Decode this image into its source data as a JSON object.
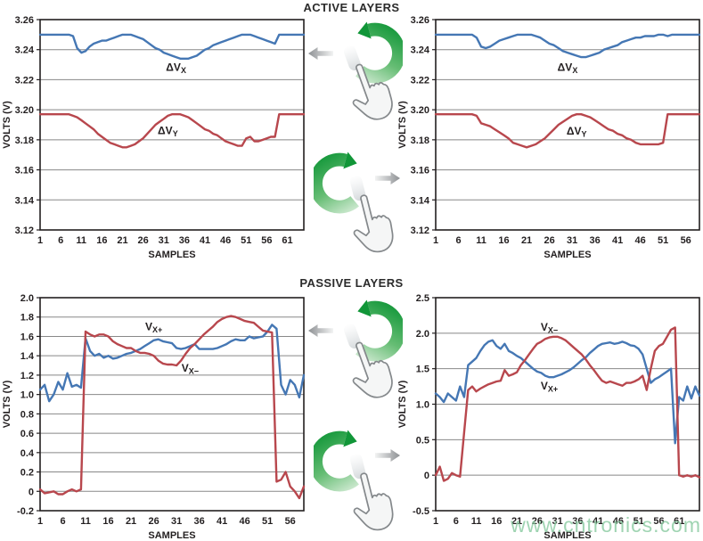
{
  "sections": [
    {
      "id": "active",
      "title": "ACTIVE LAYERS"
    },
    {
      "id": "passive",
      "title": "PASSIVE LAYERS"
    }
  ],
  "watermark": {
    "text": "www.cntronics.com",
    "color": "#8eccA4"
  },
  "colors": {
    "blue": "#4577b4",
    "red": "#b8474d",
    "grid": "#888888",
    "axis": "#231f20",
    "text": "#231f20",
    "green_arrow_dark": "#119638",
    "green_arrow_light": "#d4ecd6",
    "gray_arrow": "#8e9194",
    "hand_stroke": "#84888b",
    "hand_fill": "#f5f6f6"
  },
  "icons": [
    {
      "name": "rotate-counterclockwise-gesture-icon",
      "meaning": "rotate touch gesture counterclockwise"
    },
    {
      "name": "rotate-clockwise-gesture-icon",
      "meaning": "rotate touch gesture clockwise"
    },
    {
      "name": "left-arrow-icon",
      "meaning": "result applies to left chart"
    },
    {
      "name": "right-arrow-icon",
      "meaning": "result applies to right chart"
    },
    {
      "name": "pointing-hand-icon",
      "meaning": "finger touch"
    }
  ],
  "chart_data": [
    {
      "type": "line",
      "section": "ACTIVE LAYERS",
      "position": "left",
      "xlabel": "SAMPLES",
      "ylabel": "VOLTS (V)",
      "ylim": [
        3.12,
        3.26
      ],
      "x_max": 65,
      "xticks": [
        1,
        6,
        11,
        16,
        21,
        26,
        31,
        36,
        41,
        46,
        51,
        56,
        61
      ],
      "yticks": [
        3.26,
        3.24,
        3.22,
        3.2,
        3.18,
        3.16,
        3.14,
        3.12
      ],
      "ytick_labels": [
        "3.26",
        "3.24",
        "3.22",
        "3.20",
        "3.18",
        "3.16",
        "3.14",
        "3.12"
      ],
      "series": [
        {
          "name_main": "ΔV",
          "name_sub": "X",
          "color": "blue",
          "label_x": 34,
          "label_y": 3.2282,
          "values": [
            3.25,
            3.25,
            3.25,
            3.25,
            3.25,
            3.25,
            3.25,
            3.25,
            3.249,
            3.241,
            3.238,
            3.239,
            3.242,
            3.244,
            3.245,
            3.246,
            3.246,
            3.247,
            3.248,
            3.249,
            3.25,
            3.25,
            3.25,
            3.249,
            3.248,
            3.247,
            3.245,
            3.243,
            3.241,
            3.24,
            3.238,
            3.237,
            3.236,
            3.235,
            3.234,
            3.234,
            3.234,
            3.235,
            3.236,
            3.238,
            3.24,
            3.241,
            3.243,
            3.244,
            3.245,
            3.246,
            3.247,
            3.248,
            3.249,
            3.25,
            3.25,
            3.25,
            3.249,
            3.248,
            3.247,
            3.246,
            3.245,
            3.244,
            3.25,
            3.25,
            3.25,
            3.25,
            3.25,
            3.25,
            3.25
          ]
        },
        {
          "name_main": "ΔV",
          "name_sub": "Y",
          "color": "red",
          "label_x": 32,
          "label_y": 3.1862,
          "values": [
            3.197,
            3.197,
            3.197,
            3.197,
            3.197,
            3.197,
            3.197,
            3.197,
            3.196,
            3.195,
            3.193,
            3.191,
            3.189,
            3.187,
            3.184,
            3.182,
            3.18,
            3.178,
            3.177,
            3.176,
            3.175,
            3.175,
            3.176,
            3.177,
            3.179,
            3.181,
            3.184,
            3.187,
            3.19,
            3.192,
            3.194,
            3.196,
            3.197,
            3.197,
            3.197,
            3.196,
            3.195,
            3.193,
            3.191,
            3.189,
            3.187,
            3.186,
            3.184,
            3.183,
            3.181,
            3.179,
            3.178,
            3.177,
            3.176,
            3.176,
            3.181,
            3.182,
            3.179,
            3.179,
            3.18,
            3.181,
            3.182,
            3.182,
            3.197,
            3.197,
            3.197,
            3.197,
            3.197,
            3.197,
            3.197
          ]
        }
      ]
    },
    {
      "type": "line",
      "section": "ACTIVE LAYERS",
      "position": "right",
      "xlabel": "SAMPLES",
      "ylabel": "VOLTS (V)",
      "ylim": [
        3.12,
        3.26
      ],
      "x_max": 59,
      "xticks": [
        1,
        6,
        11,
        16,
        21,
        26,
        31,
        36,
        41,
        46,
        51,
        56
      ],
      "yticks": [
        3.26,
        3.24,
        3.22,
        3.2,
        3.18,
        3.16,
        3.14,
        3.12
      ],
      "ytick_labels": [
        "3.26",
        "3.24",
        "3.22",
        "3.20",
        "3.18",
        "3.16",
        "3.14",
        "3.12"
      ],
      "series": [
        {
          "name_main": "ΔV",
          "name_sub": "X",
          "color": "blue",
          "label_x": 30,
          "label_y": 3.2282,
          "values": [
            3.25,
            3.25,
            3.25,
            3.25,
            3.25,
            3.25,
            3.25,
            3.25,
            3.25,
            3.248,
            3.242,
            3.241,
            3.242,
            3.244,
            3.246,
            3.247,
            3.248,
            3.249,
            3.25,
            3.25,
            3.25,
            3.25,
            3.249,
            3.248,
            3.246,
            3.244,
            3.243,
            3.241,
            3.239,
            3.238,
            3.237,
            3.236,
            3.235,
            3.235,
            3.236,
            3.237,
            3.238,
            3.24,
            3.241,
            3.242,
            3.243,
            3.245,
            3.246,
            3.247,
            3.248,
            3.248,
            3.249,
            3.249,
            3.249,
            3.25,
            3.25,
            3.249,
            3.25,
            3.25,
            3.25,
            3.25,
            3.25,
            3.25,
            3.25
          ]
        },
        {
          "name_main": "ΔV",
          "name_sub": "Y",
          "color": "red",
          "label_x": 32,
          "label_y": 3.1858,
          "values": [
            3.197,
            3.197,
            3.197,
            3.197,
            3.197,
            3.197,
            3.197,
            3.197,
            3.197,
            3.196,
            3.191,
            3.19,
            3.189,
            3.187,
            3.185,
            3.183,
            3.181,
            3.178,
            3.177,
            3.176,
            3.175,
            3.176,
            3.177,
            3.179,
            3.181,
            3.184,
            3.187,
            3.19,
            3.192,
            3.194,
            3.196,
            3.197,
            3.197,
            3.196,
            3.195,
            3.193,
            3.191,
            3.189,
            3.187,
            3.186,
            3.184,
            3.183,
            3.181,
            3.18,
            3.178,
            3.177,
            3.177,
            3.177,
            3.177,
            3.177,
            3.178,
            3.197,
            3.197,
            3.197,
            3.197,
            3.197,
            3.197,
            3.197,
            3.197
          ]
        }
      ]
    },
    {
      "type": "line",
      "section": "PASSIVE LAYERS",
      "position": "left",
      "xlabel": "SAMPLES",
      "ylabel": "VOLTS (V)",
      "ylim": [
        -0.2,
        2.0
      ],
      "x_max": 59,
      "xticks": [
        1,
        6,
        11,
        16,
        21,
        26,
        31,
        36,
        41,
        46,
        51,
        56
      ],
      "yticks": [
        2.0,
        1.8,
        1.6,
        1.4,
        1.2,
        1.0,
        0.8,
        0.6,
        0.4,
        0.2,
        0,
        -0.2
      ],
      "ytick_labels": [
        "2.0",
        "1.8",
        "1.6",
        "1.4",
        "1.2",
        "1.0",
        "0.8",
        "0.6",
        "0.4",
        "0.2",
        "0",
        "-0.2"
      ],
      "series": [
        {
          "name_main": "V",
          "name_sub": "X+",
          "color": "blue",
          "label_x": 26,
          "label_y": 1.7,
          "values": [
            1.05,
            1.1,
            0.93,
            1.0,
            1.13,
            1.05,
            1.22,
            1.08,
            1.1,
            1.07,
            1.58,
            1.45,
            1.4,
            1.42,
            1.38,
            1.4,
            1.37,
            1.38,
            1.4,
            1.42,
            1.43,
            1.45,
            1.47,
            1.5,
            1.53,
            1.56,
            1.57,
            1.55,
            1.54,
            1.53,
            1.48,
            1.47,
            1.48,
            1.5,
            1.52,
            1.47,
            1.47,
            1.47,
            1.47,
            1.48,
            1.5,
            1.52,
            1.55,
            1.57,
            1.56,
            1.56,
            1.6,
            1.58,
            1.59,
            1.6,
            1.65,
            1.72,
            1.68,
            1.1,
            1.0,
            1.15,
            1.1,
            0.97,
            1.2
          ]
        },
        {
          "name_main": "V",
          "name_sub": "X−",
          "color": "red",
          "label_x": 34,
          "label_y": 1.275,
          "values": [
            0.02,
            -0.02,
            -0.01,
            0.0,
            -0.03,
            -0.03,
            0.0,
            0.02,
            0.0,
            0.02,
            1.65,
            1.62,
            1.6,
            1.62,
            1.62,
            1.6,
            1.55,
            1.52,
            1.5,
            1.48,
            1.48,
            1.45,
            1.43,
            1.43,
            1.42,
            1.4,
            1.35,
            1.32,
            1.31,
            1.31,
            1.3,
            1.35,
            1.42,
            1.48,
            1.52,
            1.57,
            1.62,
            1.66,
            1.7,
            1.75,
            1.78,
            1.8,
            1.81,
            1.8,
            1.78,
            1.76,
            1.75,
            1.74,
            1.7,
            1.66,
            1.65,
            1.64,
            0.1,
            0.12,
            0.2,
            0.05,
            0.0,
            -0.07,
            0.05
          ]
        }
      ]
    },
    {
      "type": "line",
      "section": "PASSIVE LAYERS",
      "position": "right",
      "xlabel": "SAMPLES",
      "ylabel": "VOLTS (V)",
      "ylim": [
        -0.5,
        2.5
      ],
      "x_max": 66,
      "xticks": [
        1,
        6,
        11,
        16,
        21,
        26,
        31,
        36,
        41,
        46,
        51,
        56,
        61
      ],
      "yticks": [
        2.5,
        2.0,
        1.5,
        1.0,
        0.5,
        0,
        -0.5
      ],
      "ytick_labels": [
        "2.5",
        "2.0",
        "1.5",
        "1.0",
        "0.5",
        "0",
        "-0.5"
      ],
      "series": [
        {
          "name_main": "V",
          "name_sub": "X+",
          "color": "blue",
          "label_x": 29,
          "label_y": 1.26,
          "values": [
            1.15,
            1.1,
            1.03,
            1.15,
            1.1,
            1.05,
            1.25,
            1.1,
            1.55,
            1.6,
            1.65,
            1.75,
            1.83,
            1.88,
            1.9,
            1.82,
            1.78,
            1.85,
            1.75,
            1.72,
            1.68,
            1.65,
            1.6,
            1.55,
            1.5,
            1.46,
            1.44,
            1.4,
            1.38,
            1.38,
            1.4,
            1.42,
            1.45,
            1.48,
            1.52,
            1.57,
            1.62,
            1.66,
            1.72,
            1.77,
            1.82,
            1.85,
            1.86,
            1.87,
            1.85,
            1.86,
            1.88,
            1.86,
            1.83,
            1.82,
            1.78,
            1.7,
            1.5,
            1.3,
            1.35,
            1.38,
            1.42,
            1.46,
            1.5,
            0.45,
            1.1,
            1.05,
            1.25,
            1.08,
            1.25,
            1.12
          ]
        },
        {
          "name_main": "V",
          "name_sub": "X−",
          "color": "red",
          "label_x": 29,
          "label_y": 2.085,
          "values": [
            0.0,
            0.12,
            -0.08,
            -0.05,
            0.03,
            0.0,
            -0.02,
            0.6,
            1.2,
            1.25,
            1.18,
            1.22,
            1.25,
            1.28,
            1.3,
            1.32,
            1.33,
            1.48,
            1.4,
            1.42,
            1.45,
            1.55,
            1.62,
            1.7,
            1.78,
            1.85,
            1.88,
            1.92,
            1.94,
            1.95,
            1.95,
            1.93,
            1.9,
            1.85,
            1.8,
            1.75,
            1.7,
            1.63,
            1.55,
            1.48,
            1.4,
            1.33,
            1.3,
            1.32,
            1.3,
            1.28,
            1.26,
            1.3,
            1.3,
            1.32,
            1.35,
            1.4,
            1.2,
            1.5,
            1.75,
            1.82,
            1.85,
            1.95,
            2.05,
            2.08,
            0.0,
            -0.02,
            0.0,
            -0.02,
            0.0,
            -0.03
          ]
        }
      ]
    }
  ]
}
